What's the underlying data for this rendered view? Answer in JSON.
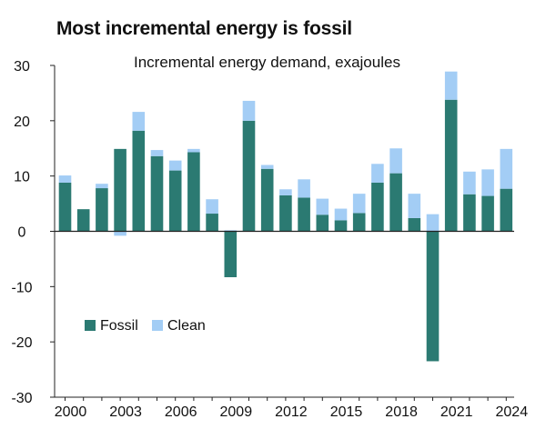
{
  "title": "Most incremental energy is fossil",
  "subtitle": "Incremental energy demand, exajoules",
  "chart_data": {
    "type": "bar",
    "stacked": true,
    "title": "Most incremental energy is fossil",
    "subtitle": "Incremental energy demand, exajoules",
    "categories": [
      "2000",
      "2001",
      "2002",
      "2003",
      "2004",
      "2005",
      "2006",
      "2007",
      "2008",
      "2009",
      "2010",
      "2011",
      "2012",
      "2013",
      "2014",
      "2015",
      "2016",
      "2017",
      "2018",
      "2019",
      "2020",
      "2021",
      "2022",
      "2023",
      "2024"
    ],
    "x_tick_labels": [
      "2000",
      "2003",
      "2006",
      "2009",
      "2012",
      "2015",
      "2018",
      "2021",
      "2024"
    ],
    "y_tick_labels": [
      "30",
      "20",
      "10",
      "0",
      "-10",
      "-20",
      "-30"
    ],
    "ylim": [
      -30,
      30
    ],
    "grid": false,
    "legend_position": "bottom-left",
    "series": [
      {
        "name": "Fossil",
        "color": "#2b7a72",
        "values": [
          8.8,
          4.0,
          7.8,
          14.9,
          18.2,
          13.6,
          11.0,
          14.3,
          3.2,
          -8.3,
          20.0,
          11.3,
          6.5,
          6.1,
          3.0,
          2.0,
          3.3,
          8.8,
          10.5,
          2.4,
          -23.5,
          23.8,
          6.7,
          6.4,
          7.7
        ]
      },
      {
        "name": "Clean",
        "color": "#a3cdf5",
        "values": [
          1.3,
          0.0,
          0.8,
          -0.8,
          3.4,
          1.1,
          1.8,
          0.6,
          2.6,
          0.2,
          3.6,
          0.7,
          1.1,
          3.3,
          2.9,
          2.1,
          3.5,
          3.4,
          4.5,
          4.4,
          3.1,
          5.1,
          4.1,
          4.8,
          7.2
        ]
      }
    ]
  }
}
